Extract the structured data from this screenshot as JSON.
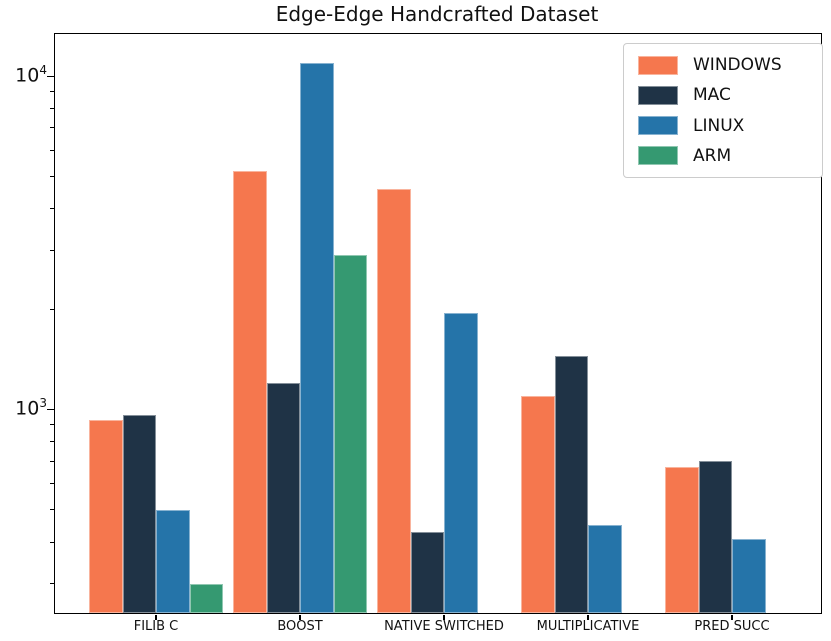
{
  "chart_data": {
    "type": "bar",
    "title": "Edge-Edge Handcrafted Dataset",
    "xlabel": "",
    "ylabel": "",
    "yscale": "log",
    "ylim": [
      245,
      13400
    ],
    "grid": false,
    "categories": [
      "FILIB C",
      "BOOST",
      "NATIVE SWITCHED",
      "MULTIPLICATIVE",
      "PRED SUCC"
    ],
    "series": [
      {
        "name": "WINDOWS",
        "color": "#F5774E",
        "values": [
          930,
          5200,
          4600,
          1100,
          670
        ]
      },
      {
        "name": "MAC",
        "color": "#1F3346",
        "values": [
          960,
          1200,
          430,
          1450,
          700
        ]
      },
      {
        "name": "LINUX",
        "color": "#2574A9",
        "values": [
          500,
          11000,
          1950,
          450,
          410
        ]
      },
      {
        "name": "ARM",
        "color": "#359971",
        "values": [
          300,
          2900,
          null,
          null,
          null
        ]
      }
    ],
    "y_major_ticks": [
      {
        "value": 1000,
        "base": "10",
        "exp": "3"
      },
      {
        "value": 10000,
        "base": "10",
        "exp": "4"
      }
    ],
    "legend": {
      "position": "upper right",
      "labels": [
        "WINDOWS",
        "MAC",
        "LINUX",
        "ARM"
      ]
    }
  }
}
